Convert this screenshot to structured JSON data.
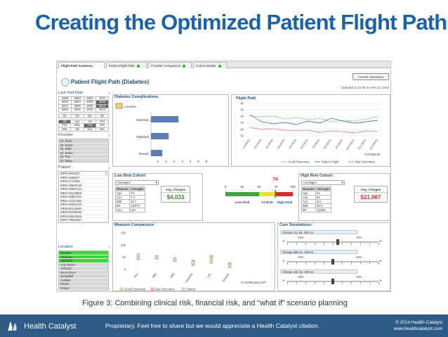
{
  "slide": {
    "title": "Creating the Optimized Patient Flight Path",
    "caption": "Figure 3: Combining clinical risk, financial risk, and “what if” scenario planning",
    "footer": {
      "logo_text": "Health Catalyst",
      "proprietary": "Proprietary. Feel free to share but we would appreciate a Health Catalyst citation.",
      "copyright": "© 2014 Health Catalyst",
      "website": "www.healthcatalyst.com"
    }
  },
  "dashboard": {
    "tabs": [
      "Flight Path Summary",
      "Patient Flight Path",
      "Provider Comparison",
      "Cohort Details"
    ],
    "header_title": "Patient Flight Path (Diabetes)",
    "current_selections_label": "Current Selections",
    "updated_text": "Updated at 12:56 on Feb 13, 2015",
    "filters": {
      "last_visit_label": "Last Visit Date",
      "years": [
        [
          "1999",
          "2003",
          "2007",
          "2011"
        ],
        [
          "2000",
          "2004",
          "2008",
          "2012"
        ],
        [
          "2001",
          "2005",
          "2009",
          "2013"
        ],
        [
          "2002",
          "2006",
          "2010",
          "2014"
        ]
      ],
      "quarters": [
        "Q1",
        "Q2",
        "Q3",
        "Q4"
      ],
      "months": [
        [
          "Jan",
          "Apr",
          "Jul",
          "Oct"
        ],
        [
          "Feb",
          "May",
          "Aug",
          "Nov"
        ],
        [
          "Mar",
          "Jun",
          "Sep",
          "Dec"
        ]
      ],
      "provider_label": "Provider",
      "providers": [
        "Dr. Ross",
        "Dr. Rossi",
        "Dr. Ruth",
        "Dr. Rowe",
        "Dr. Roy",
        "Dr. Raye"
      ],
      "patient_label": "Patient",
      "patients": [
        "MRN-9064327",
        "MRN-1088247",
        "MRN-1776206",
        "MRN-20560746",
        "MRN-20667141",
        "MRN-30118865",
        "MRN-32867612",
        "MRN-44117282",
        "MRN-40852733",
        "MRN-50124564",
        "MRN-60159050",
        "MRN-63824816",
        "MRN-70893361"
      ],
      "location_label": "Location",
      "locations": [
        "Member",
        "Hamman",
        "Highland",
        "71st Street",
        "Ashland",
        "Brock River",
        "Campbell",
        "Catfield",
        "Dewitt",
        "Drager"
      ]
    },
    "complications": {
      "title": "Diabetes Complications",
      "location_label": "Location",
      "categories": [
        "Hamman",
        "Highland",
        "Rossar"
      ],
      "values": [
        3.4,
        2.2,
        1.4
      ],
      "axis_ticks": [
        "0",
        "1",
        "2",
        "3",
        "4",
        "5",
        "6"
      ]
    },
    "flight_path": {
      "title": "Flight Path",
      "y_ticks": [
        "85",
        "83",
        "75",
        "70",
        "65",
        "62"
      ],
      "x_ticks": [
        "1/1/2015",
        "2/1/2015",
        "3/1/2015",
        "4/1/2015",
        "5/1/2015",
        "6/1/2015",
        "7/1/2015",
        "8/1/2015",
        "9/1/2015",
        "10/1/2015",
        "11/1/2015",
        "12/1/2015"
      ],
      "x_label": "TrendMonth",
      "legend": [
        "Good Outcomes",
        "Patient Flight",
        "Bad Outcomes"
      ],
      "good": [
        76,
        75.5,
        76,
        74,
        75,
        73.5,
        74.5,
        72,
        73,
        72.5,
        74,
        75.5
      ],
      "patient": [
        77,
        72,
        70.5,
        71.5,
        70,
        72.5,
        71,
        74.5,
        72.5,
        71,
        72,
        73
      ],
      "bad": [
        68,
        66.5,
        67,
        66,
        65.5,
        66,
        64.5,
        65.5,
        65,
        64,
        65.5,
        65
      ],
      "colors": {
        "good": "#7fbf5f",
        "patient": "#5b7db1",
        "bad": "#d9534f"
      }
    },
    "low_risk": {
      "title": "Low Risk Cohort:",
      "dropdown": "Averages",
      "col_measure": "Measure",
      "col_average": "Averages",
      "rows": [
        [
          "Age",
          "73"
        ],
        [
          "A1c",
          "7.3"
        ],
        [
          "BMI",
          "33.7"
        ],
        [
          "BP",
          "130/73"
        ],
        [
          "LDL",
          "118"
        ]
      ],
      "avg_label": "Avg. Charges",
      "avg_value": "$4,033"
    },
    "gauge": {
      "value": "74",
      "ticks": [
        "0",
        "25",
        "50",
        "75",
        "100"
      ],
      "labels": [
        "Low Risk",
        "At Risk",
        "High Risk"
      ],
      "colors": {
        "low": "#3aa93a",
        "mid": "#f0e03c",
        "high": "#d82c2c"
      }
    },
    "high_risk": {
      "title": "High Risk Cohort:",
      "dropdown": "Averages",
      "col_measure": "Measure",
      "col_average": "Averages",
      "rows": [
        [
          "Age",
          "64"
        ],
        [
          "LDL",
          "64"
        ],
        [
          "A1c",
          "6.0"
        ],
        [
          "BMI",
          "20.0"
        ],
        [
          "BP",
          "113/82"
        ]
      ],
      "avg_label": "Avg. Charges",
      "avg_value": "$21,667"
    },
    "measure_comparison": {
      "title": "Measure Comparison",
      "y_ticks": [
        "150",
        "100",
        "50",
        "0"
      ],
      "categories": [
        "A1c",
        "Age",
        "BMI",
        "Diastolic",
        "LDL",
        "Systolic"
      ],
      "x_label": "% Gel/Measure BP",
      "legend": [
        "Good Outcomes",
        "Bad Outcomes",
        "Patient"
      ]
    },
    "care_sim": {
      "title": "Care Simulations:",
      "sliders": [
        {
          "label": "Change A1c by -25% to",
          "min": "-25%",
          "max": "10%",
          "position": 0.55
        },
        {
          "label": "Change BMI by -25% to",
          "min": "-25%",
          "max": "10%",
          "position": 0.5
        },
        {
          "label": "Change LDL by -25% to",
          "min": "-25%",
          "max": "10%",
          "position": 0.5
        }
      ]
    }
  }
}
